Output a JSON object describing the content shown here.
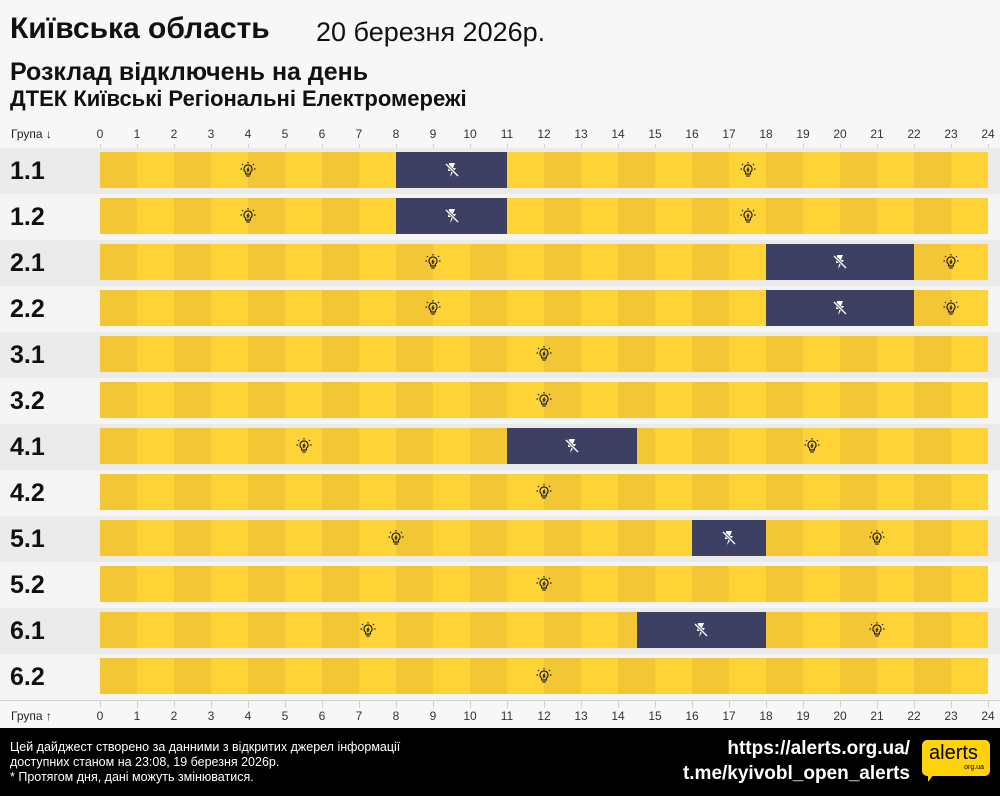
{
  "header": {
    "region": "Київська область",
    "date": "20 березня 2026р.",
    "title": "Розклад відключень на день",
    "subtitle": "ДТЕК Київські Регіональні Електромережі"
  },
  "axis": {
    "top_label": "Група ↓",
    "bottom_label": "Група ↑",
    "hours": [
      "0",
      "1",
      "2",
      "3",
      "4",
      "5",
      "6",
      "7",
      "8",
      "9",
      "10",
      "11",
      "12",
      "13",
      "14",
      "15",
      "16",
      "17",
      "18",
      "19",
      "20",
      "21",
      "22",
      "23",
      "24"
    ]
  },
  "colors": {
    "on_dark": "#f3c636",
    "on_light": "#fed336",
    "off": "#3d3f63",
    "row_a": "#ebebeb",
    "row_b": "#f5f5f5"
  },
  "icons": {
    "on": "lightbulb-icon",
    "off": "power-off-icon"
  },
  "groups": [
    {
      "label": "1.1",
      "outages": [
        [
          8,
          11
        ]
      ]
    },
    {
      "label": "1.2",
      "outages": [
        [
          8,
          11
        ]
      ]
    },
    {
      "label": "2.1",
      "outages": [
        [
          18,
          22
        ]
      ]
    },
    {
      "label": "2.2",
      "outages": [
        [
          18,
          22
        ]
      ]
    },
    {
      "label": "3.1",
      "outages": []
    },
    {
      "label": "3.2",
      "outages": []
    },
    {
      "label": "4.1",
      "outages": [
        [
          11,
          14.5
        ]
      ]
    },
    {
      "label": "4.2",
      "outages": []
    },
    {
      "label": "5.1",
      "outages": [
        [
          16,
          18
        ]
      ]
    },
    {
      "label": "5.2",
      "outages": []
    },
    {
      "label": "6.1",
      "outages": [
        [
          14.5,
          18
        ]
      ]
    },
    {
      "label": "6.2",
      "outages": []
    }
  ],
  "footer": {
    "note": "Цей дайджест створено за данними з відкритих джерел інформації\nдоступних станом на 23:08, 19 березня 2026р.\n* Протягом дня, дані можуть змінюватися.",
    "link1": "https://alerts.org.ua/",
    "link2": "t.me/kyivobl_open_alerts",
    "logo_text": "alerts",
    "logo_sub": "org.ua"
  }
}
